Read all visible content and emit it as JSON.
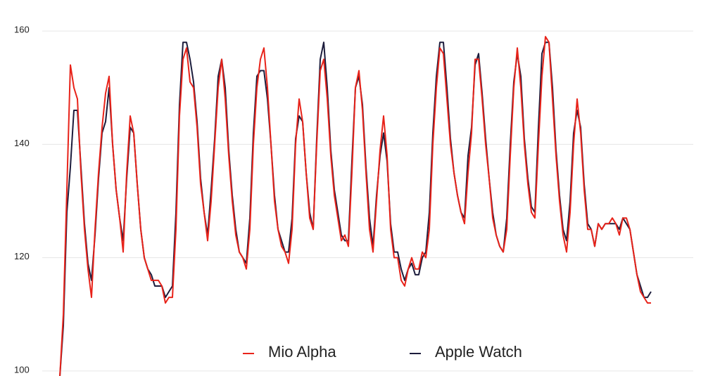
{
  "chart_data": {
    "type": "line",
    "ylim": [
      99,
      161
    ],
    "yticks": [
      100,
      120,
      140,
      160
    ],
    "grid": true,
    "legend": "bottom",
    "series": [
      {
        "name": "Mio Alpha",
        "color": "#e8231a",
        "values": [
          99,
          110,
          132,
          154,
          150,
          148,
          135,
          125,
          118,
          113,
          125,
          135,
          143,
          149,
          152,
          140,
          132,
          127,
          121,
          135,
          145,
          142,
          133,
          125,
          120,
          118,
          116,
          116,
          116,
          115,
          112,
          113,
          113,
          125,
          145,
          155,
          157,
          151,
          150,
          143,
          133,
          128,
          123,
          130,
          140,
          150,
          155,
          148,
          138,
          130,
          124,
          121,
          120,
          118,
          125,
          140,
          150,
          155,
          157,
          150,
          140,
          130,
          125,
          122,
          121,
          119,
          125,
          140,
          148,
          144,
          135,
          127,
          125,
          140,
          153,
          155,
          148,
          138,
          131,
          127,
          123,
          124,
          122,
          135,
          150,
          153,
          146,
          135,
          125,
          121,
          130,
          139,
          145,
          138,
          125,
          120,
          120,
          116,
          115,
          118,
          120,
          118,
          118,
          121,
          120,
          125,
          140,
          150,
          157,
          156,
          148,
          140,
          135,
          131,
          128,
          126,
          135,
          142,
          155,
          155,
          148,
          140,
          134,
          127,
          124,
          122,
          121,
          125,
          138,
          150,
          157,
          150,
          140,
          133,
          128,
          127,
          140,
          152,
          159,
          158,
          148,
          138,
          130,
          124,
          121,
          128,
          140,
          148,
          142,
          132,
          125,
          125,
          122,
          126,
          125,
          126,
          126,
          127,
          126,
          124,
          127,
          127,
          125,
          121,
          117,
          114,
          113,
          112,
          112
        ]
      },
      {
        "name": "Apple Watch",
        "color": "#1c1c3c",
        "values": [
          99,
          108,
          128,
          136,
          146,
          146,
          136,
          126,
          119,
          116,
          124,
          134,
          142,
          144,
          150,
          140,
          132,
          127,
          123,
          134,
          143,
          142,
          133,
          125,
          120,
          118,
          117,
          115,
          115,
          115,
          113,
          114,
          115,
          128,
          147,
          158,
          158,
          155,
          151,
          144,
          134,
          128,
          124,
          132,
          141,
          152,
          155,
          150,
          139,
          131,
          125,
          121,
          120,
          119,
          127,
          142,
          152,
          153,
          153,
          148,
          140,
          131,
          125,
          123,
          121,
          121,
          127,
          141,
          145,
          144,
          135,
          128,
          125,
          141,
          155,
          158,
          150,
          139,
          132,
          128,
          124,
          123,
          123,
          137,
          150,
          152,
          147,
          136,
          127,
          122,
          131,
          138,
          142,
          137,
          126,
          121,
          121,
          118,
          116,
          118,
          119,
          117,
          117,
          120,
          121,
          128,
          142,
          152,
          158,
          158,
          150,
          141,
          135,
          131,
          128,
          127,
          138,
          143,
          154,
          156,
          149,
          141,
          134,
          128,
          124,
          122,
          121,
          127,
          140,
          151,
          156,
          152,
          141,
          134,
          129,
          128,
          143,
          156,
          158,
          158,
          150,
          139,
          131,
          125,
          123,
          130,
          142,
          146,
          143,
          133,
          126,
          125,
          122,
          126,
          125,
          126,
          126,
          126,
          126,
          125,
          127,
          126,
          125,
          121,
          117,
          115,
          113,
          113,
          114
        ]
      }
    ]
  }
}
